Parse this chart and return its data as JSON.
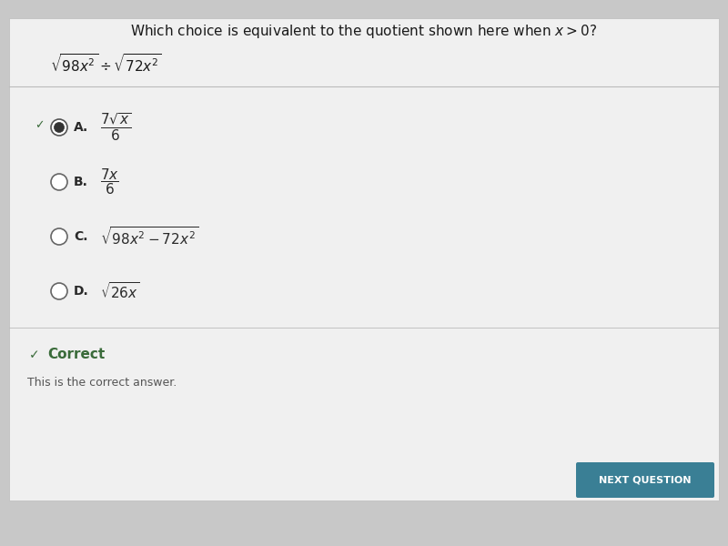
{
  "background_color": "#c8c8c8",
  "content_bg": "#efefef",
  "title_question": "Which choice is equivalent to the quotient shown here when $x > 0$?",
  "options": [
    {
      "label": "A.",
      "selected": true
    },
    {
      "label": "B.",
      "selected": false
    },
    {
      "label": "C.",
      "selected": false
    },
    {
      "label": "D.",
      "selected": false
    }
  ],
  "option_math": [
    "$\\dfrac{7\\sqrt{x}}{6}$",
    "$\\dfrac{7x}{6}$",
    "$\\sqrt{98x^2 - 72x^2}$",
    "$\\sqrt{26x}$"
  ],
  "expression": "$\\sqrt{98x^2} \\div \\sqrt{72x^2}$",
  "correct_label": "Correct",
  "correct_subtext": "This is the correct answer.",
  "button_text": "NEXT QUESTION",
  "button_color": "#3a7f95",
  "check_color": "#3a6b3a",
  "separator_color": "#bbbbbb",
  "text_color": "#1a1a1a",
  "option_text_color": "#2a2a2a",
  "title_fontsize": 11,
  "option_fontsize": 10,
  "expr_fontsize": 10
}
